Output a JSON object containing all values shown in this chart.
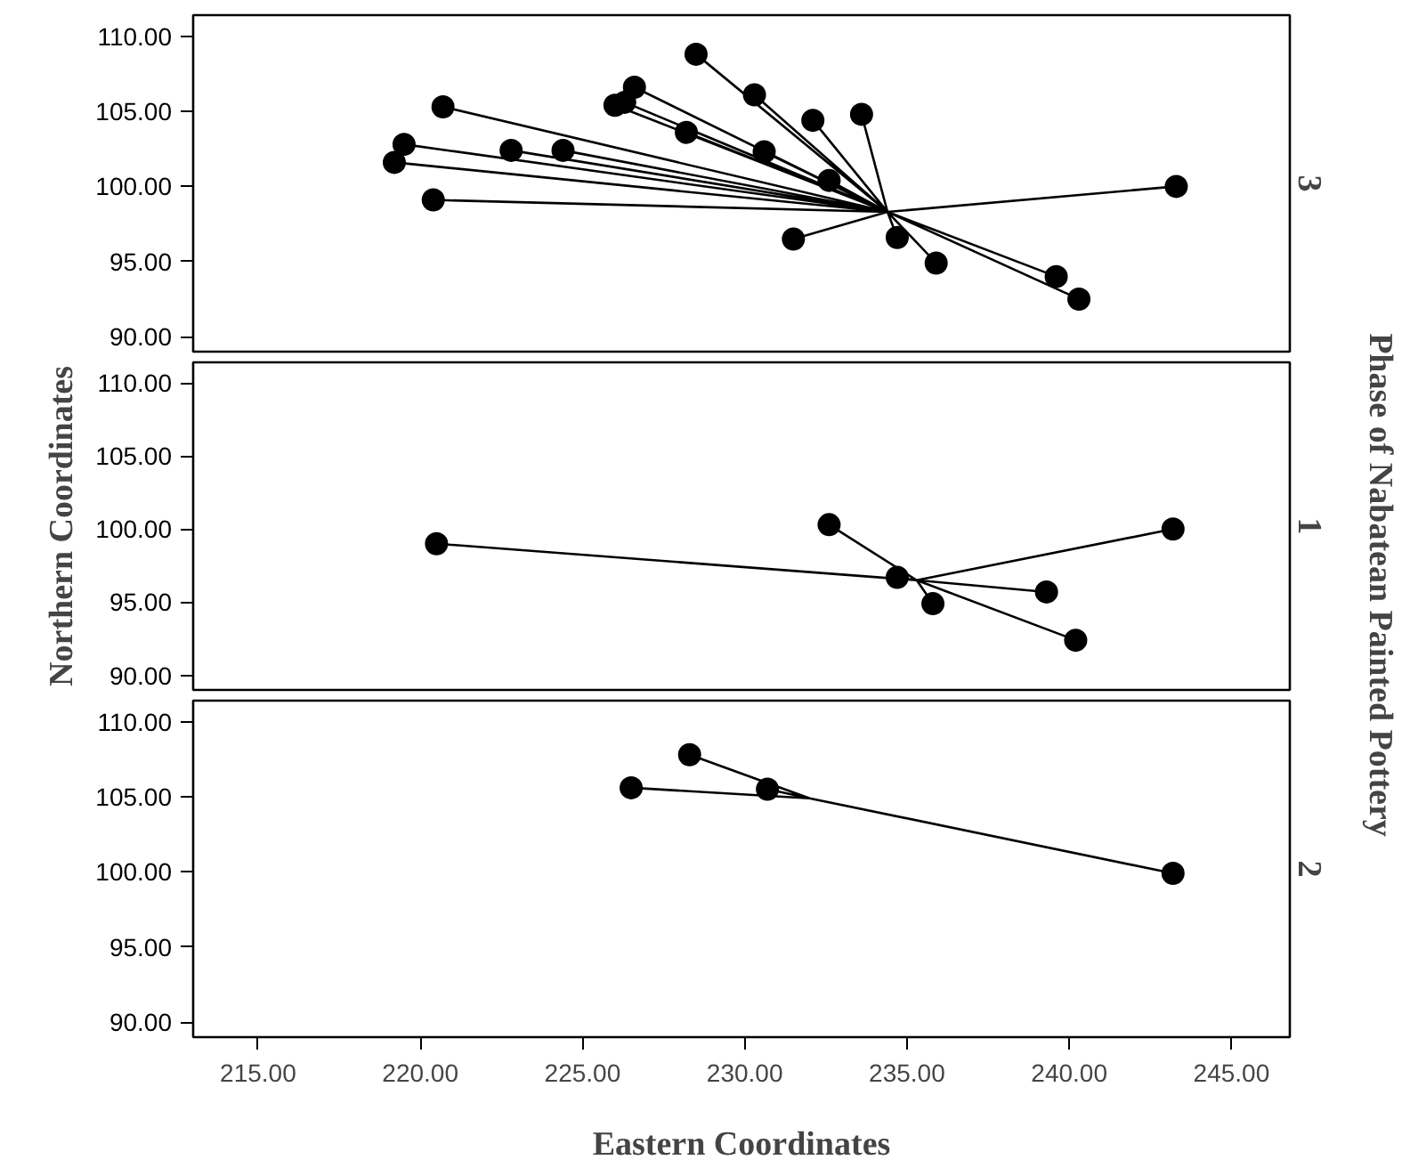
{
  "chart_data": [
    {
      "type": "scatter",
      "title": "3",
      "xlim": [
        213.0,
        246.8
      ],
      "ylim": [
        89.0,
        111.4
      ],
      "yticks": [
        {
          "value": 90,
          "label": "90.00"
        },
        {
          "value": 95,
          "label": "95.00"
        },
        {
          "value": 100,
          "label": "100.00"
        },
        {
          "value": 105,
          "label": "105.00"
        },
        {
          "value": 110,
          "label": "110.00"
        }
      ],
      "tick_labels": "y",
      "grid": false,
      "series": [
        {
          "type": "line",
          "color": "#000000",
          "marker": "none",
          "x": [
            234.4,
            228.5,
            234.4,
            230.3,
            234.4,
            226.6,
            234.4,
            226.0,
            234.4,
            226.3,
            234.4,
            220.7,
            234.4,
            228.2,
            234.4,
            232.1,
            234.4,
            233.6,
            234.4,
            230.6,
            234.4,
            222.8,
            234.4,
            224.4,
            234.4,
            219.5,
            234.4,
            219.2,
            234.4,
            232.6,
            234.4,
            220.4,
            234.4,
            243.3,
            234.4,
            231.5,
            234.4,
            234.7,
            234.4,
            235.9,
            234.4,
            239.6,
            234.4,
            240.3
          ],
          "values": [
            98.3,
            108.8,
            98.3,
            106.1,
            98.3,
            106.6,
            98.3,
            105.4,
            98.3,
            105.6,
            98.3,
            105.3,
            98.3,
            103.6,
            98.3,
            104.4,
            98.3,
            104.8,
            98.3,
            102.3,
            98.3,
            102.4,
            98.3,
            102.4,
            98.3,
            102.8,
            98.3,
            101.6,
            98.3,
            100.4,
            98.3,
            99.1,
            98.3,
            100.0,
            98.3,
            96.5,
            98.3,
            96.6,
            98.3,
            94.9,
            98.3,
            94.0,
            98.3,
            92.5
          ]
        },
        {
          "color": "#000000",
          "marker": "circle",
          "x": [
            228.5,
            230.3,
            226.6,
            226.0,
            226.3,
            220.7,
            228.2,
            232.1,
            233.6,
            230.6,
            222.8,
            224.4,
            219.5,
            219.2,
            232.6,
            220.4,
            243.3,
            231.5,
            234.7,
            235.9,
            239.6,
            240.3
          ],
          "values": [
            108.8,
            106.1,
            106.6,
            105.4,
            105.6,
            105.3,
            103.6,
            104.4,
            104.8,
            102.3,
            102.4,
            102.4,
            102.8,
            101.6,
            100.4,
            99.1,
            100.0,
            96.5,
            96.6,
            94.9,
            94.0,
            92.5
          ]
        }
      ]
    },
    {
      "type": "scatter",
      "title": "1",
      "ylabel": "Northern Coordinates",
      "y2label": "Phase of Nabatean Painted Pottery",
      "xlim": [
        213.0,
        246.8
      ],
      "ylim": [
        89.0,
        111.4
      ],
      "yticks": [
        {
          "value": 90,
          "label": "90.00"
        },
        {
          "value": 95,
          "label": "95.00"
        },
        {
          "value": 100,
          "label": "100.00"
        },
        {
          "value": 105,
          "label": "105.00"
        },
        {
          "value": 110,
          "label": "110.00"
        }
      ],
      "tick_labels": "y",
      "grid": false,
      "series": [
        {
          "type": "line",
          "color": "#000000",
          "marker": "none",
          "x": [
            235.3,
            220.5,
            235.3,
            232.6,
            235.3,
            243.2,
            235.3,
            234.7,
            235.3,
            235.8,
            235.3,
            239.3,
            235.3,
            240.2
          ],
          "values": [
            96.5,
            99.0,
            96.5,
            100.3,
            96.5,
            100.0,
            96.5,
            96.7,
            96.5,
            94.9,
            96.5,
            95.7,
            96.5,
            92.4
          ]
        },
        {
          "color": "#000000",
          "marker": "circle",
          "x": [
            220.5,
            232.6,
            243.2,
            234.7,
            235.8,
            239.3,
            240.2
          ],
          "values": [
            99.0,
            100.3,
            100.0,
            96.7,
            94.9,
            95.7,
            92.4
          ]
        }
      ]
    },
    {
      "type": "scatter",
      "title": "2",
      "xlabel": "Eastern Coordinates",
      "xlim": [
        213.0,
        246.8
      ],
      "ylim": [
        89.0,
        111.4
      ],
      "xticks": [
        {
          "value": 215,
          "label": "215.00"
        },
        {
          "value": 220,
          "label": "220.00"
        },
        {
          "value": 225,
          "label": "225.00"
        },
        {
          "value": 230,
          "label": "230.00"
        },
        {
          "value": 235,
          "label": "235.00"
        },
        {
          "value": 240,
          "label": "240.00"
        },
        {
          "value": 245,
          "label": "245.00"
        }
      ],
      "yticks": [
        {
          "value": 90,
          "label": "90.00"
        },
        {
          "value": 95,
          "label": "95.00"
        },
        {
          "value": 100,
          "label": "100.00"
        },
        {
          "value": 105,
          "label": "105.00"
        },
        {
          "value": 110,
          "label": "110.00"
        }
      ],
      "grid": false,
      "series": [
        {
          "type": "line",
          "color": "#000000",
          "marker": "none",
          "x": [
            232.0,
            226.5,
            232.0,
            228.3,
            232.0,
            230.7,
            232.0,
            243.2
          ],
          "values": [
            104.9,
            105.6,
            104.9,
            107.8,
            104.9,
            105.5,
            104.9,
            99.9
          ]
        },
        {
          "color": "#000000",
          "marker": "circle",
          "x": [
            226.5,
            228.3,
            230.7,
            243.2
          ],
          "values": [
            105.6,
            107.8,
            105.5,
            99.9
          ]
        }
      ]
    }
  ]
}
